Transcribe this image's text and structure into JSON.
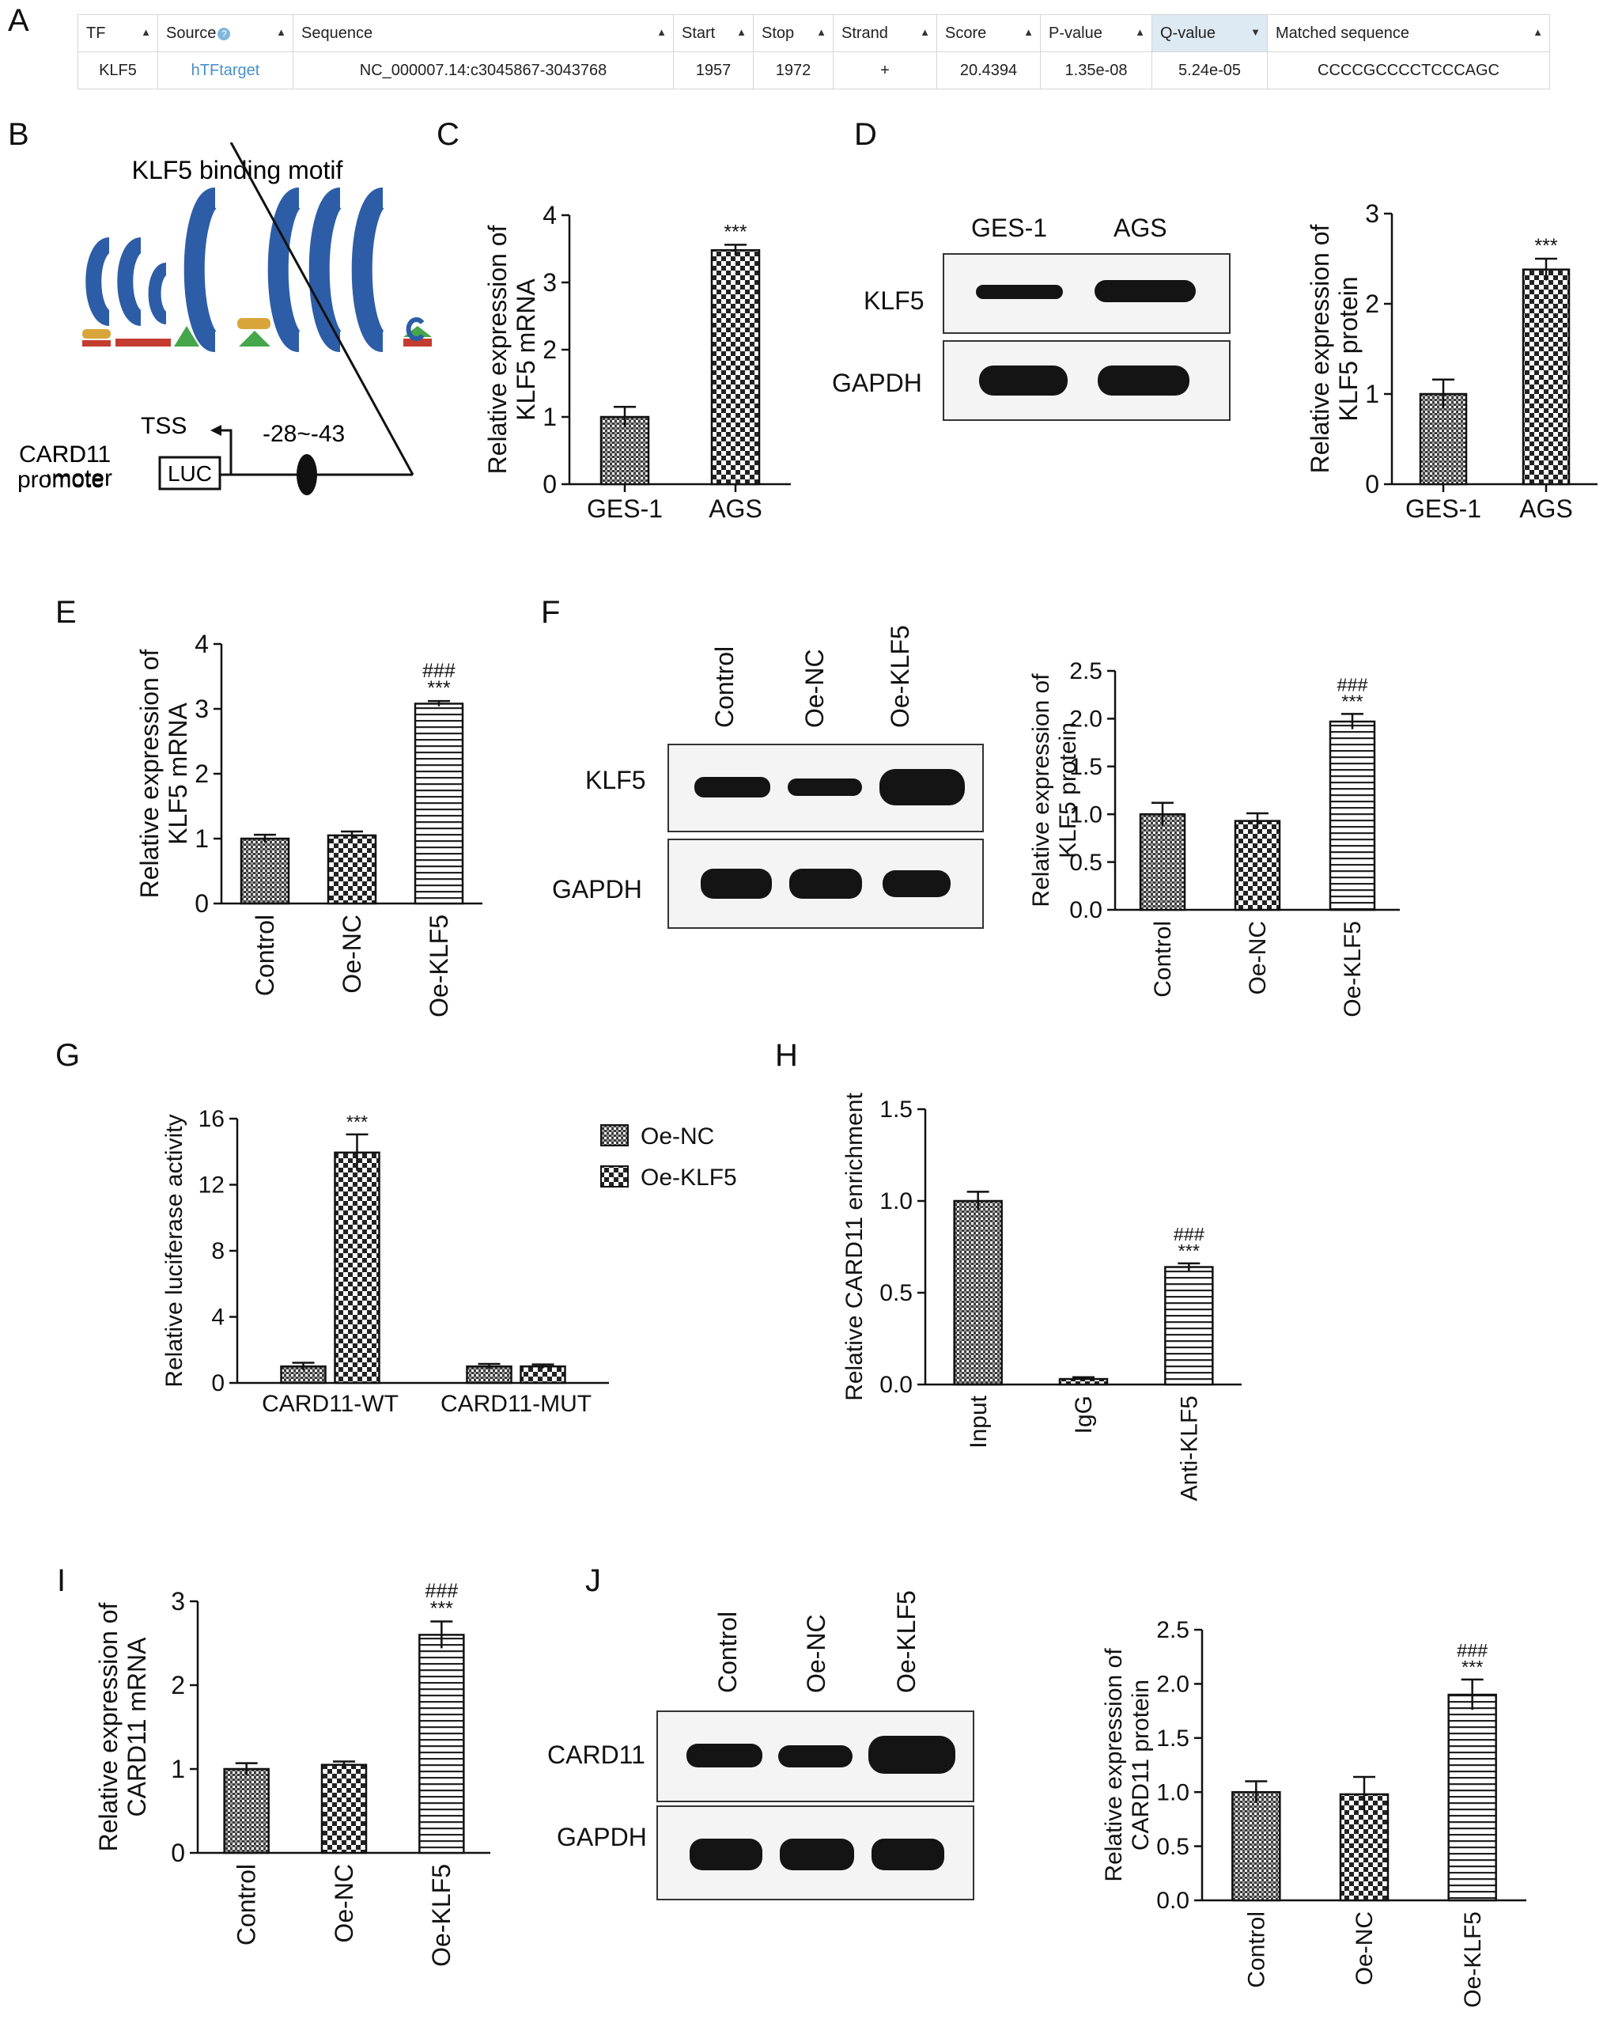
{
  "panels": {
    "A": "A",
    "B": "B",
    "C": "C",
    "D": "D",
    "E": "E",
    "F": "F",
    "G": "G",
    "H": "H",
    "I": "I",
    "J": "J"
  },
  "colors": {
    "bar_stroke": "#111111",
    "blot_bg": "#f4f4f4",
    "blot_band": "#141414",
    "link": "#4a90c8",
    "active_header": "#dde9f3"
  },
  "table": {
    "headers": [
      "TF",
      "Source",
      "Sequence",
      "Start",
      "Stop",
      "Strand",
      "Score",
      "P-value",
      "Q-value",
      "Matched sequence"
    ],
    "active_header": "Q-value",
    "row": [
      "KLF5",
      "hTFtarget",
      "NC_000007.14:c3045867-3043768",
      "1957",
      "1972",
      "+",
      "20.4394",
      "1.35e-08",
      "5.24e-05",
      "CCCCGCCCCTCCCAGC"
    ]
  },
  "motif": {
    "title": "KLF5 binding motif",
    "tss_label": "TSS",
    "site_label": "-28~-43",
    "promoter_label_1": "CARD11",
    "promoter_label_2": "promoter",
    "luc_label": "LUC"
  },
  "blots": {
    "D": {
      "lanes": [
        "GES-1",
        "AGS"
      ],
      "rows": [
        "KLF5",
        "GAPDH"
      ]
    },
    "F": {
      "lanes": [
        "Control",
        "Oe-NC",
        "Oe-KLF5"
      ],
      "rows": [
        "KLF5",
        "GAPDH"
      ]
    },
    "J": {
      "lanes": [
        "Control",
        "Oe-NC",
        "Oe-KLF5"
      ],
      "rows": [
        "CARD11",
        "GAPDH"
      ]
    }
  },
  "chart_data": [
    {
      "panel": "C",
      "type": "bar",
      "categories": [
        "GES-1",
        "AGS"
      ],
      "values": [
        1.0,
        3.48
      ],
      "errors": [
        0.15,
        0.08
      ],
      "patterns": [
        "dense",
        "check"
      ],
      "sig": [
        "",
        "***"
      ],
      "ylabel": [
        "Relative expression of",
        "KLF5 mRNA"
      ],
      "ylim": [
        0,
        4
      ],
      "yticks": [
        "0",
        "1",
        "2",
        "3",
        "4"
      ]
    },
    {
      "panel": "D",
      "type": "bar",
      "categories": [
        "GES-1",
        "AGS"
      ],
      "values": [
        1.0,
        2.38
      ],
      "errors": [
        0.16,
        0.12
      ],
      "patterns": [
        "dense",
        "check"
      ],
      "sig": [
        "",
        "***"
      ],
      "ylabel": [
        "Relative expression of",
        "KLF5 protein"
      ],
      "ylim": [
        0,
        3
      ],
      "yticks": [
        "0",
        "1",
        "2",
        "3"
      ]
    },
    {
      "panel": "E",
      "type": "bar",
      "categories": [
        "Control",
        "Oe-NC",
        "Oe-KLF5"
      ],
      "values": [
        1.0,
        1.05,
        3.08
      ],
      "errors": [
        0.06,
        0.06,
        0.04
      ],
      "patterns": [
        "dense",
        "check",
        "hline"
      ],
      "sig": [
        "",
        "",
        "***"
      ],
      "sig2": [
        "",
        "",
        "###"
      ],
      "ylabel": [
        "Relative expression of",
        "KLF5 mRNA"
      ],
      "ylim": [
        0,
        4
      ],
      "yticks": [
        "0",
        "1",
        "2",
        "3",
        "4"
      ]
    },
    {
      "panel": "F",
      "type": "bar",
      "categories": [
        "Control",
        "Oe-NC",
        "Oe-KLF5"
      ],
      "values": [
        1.0,
        0.93,
        1.97
      ],
      "errors": [
        0.12,
        0.08,
        0.08
      ],
      "patterns": [
        "dense",
        "check",
        "hline"
      ],
      "sig": [
        "",
        "",
        "***"
      ],
      "sig2": [
        "",
        "",
        "###"
      ],
      "ylabel": [
        "Relative expression of",
        "KLF5 protein"
      ],
      "ylim": [
        0,
        2.5
      ],
      "yticks": [
        "0.0",
        "0.5",
        "1.0",
        "1.5",
        "2.0",
        "2.5"
      ]
    },
    {
      "panel": "G",
      "type": "bar",
      "groups": [
        "CARD11-WT",
        "CARD11-MUT"
      ],
      "series": [
        {
          "name": "Oe-NC",
          "values": [
            1.0,
            1.0
          ],
          "errors": [
            0.22,
            0.15
          ]
        },
        {
          "name": "Oe-KLF5",
          "values": [
            13.95,
            1.0
          ],
          "errors": [
            1.1,
            0.12
          ]
        }
      ],
      "patterns": [
        "dense",
        "check"
      ],
      "sig": [
        "***",
        ""
      ],
      "ylabel": [
        "Relative luciferase activity"
      ],
      "ylim": [
        0,
        16
      ],
      "yticks": [
        "0",
        "4",
        "8",
        "12",
        "16"
      ]
    },
    {
      "panel": "H",
      "type": "bar",
      "categories": [
        "Input",
        "IgG",
        "Anti-KLF5"
      ],
      "values": [
        1.0,
        0.03,
        0.64
      ],
      "errors": [
        0.05,
        0.01,
        0.02
      ],
      "patterns": [
        "dense",
        "check",
        "hline"
      ],
      "sig": [
        "",
        "",
        "***"
      ],
      "sig2": [
        "",
        "",
        "###"
      ],
      "ylabel": [
        "Relative CARD11 enrichment"
      ],
      "ylim": [
        0,
        1.5
      ],
      "yticks": [
        "0.0",
        "0.5",
        "1.0",
        "1.5"
      ]
    },
    {
      "panel": "I",
      "type": "bar",
      "categories": [
        "Control",
        "Oe-NC",
        "Oe-KLF5"
      ],
      "values": [
        1.0,
        1.05,
        2.6
      ],
      "errors": [
        0.07,
        0.04,
        0.16
      ],
      "patterns": [
        "dense",
        "check",
        "hline"
      ],
      "sig": [
        "",
        "",
        "***"
      ],
      "sig2": [
        "",
        "",
        "###"
      ],
      "ylabel": [
        "Relative expression of",
        "CARD11 mRNA"
      ],
      "ylim": [
        0,
        3
      ],
      "yticks": [
        "0",
        "1",
        "2",
        "3"
      ]
    },
    {
      "panel": "J",
      "type": "bar",
      "categories": [
        "Control",
        "Oe-NC",
        "Oe-KLF5"
      ],
      "values": [
        1.0,
        0.98,
        1.9
      ],
      "errors": [
        0.1,
        0.16,
        0.14
      ],
      "patterns": [
        "dense",
        "check",
        "hline"
      ],
      "sig": [
        "",
        "",
        "***"
      ],
      "sig2": [
        "",
        "",
        "###"
      ],
      "ylabel": [
        "Relative expression of",
        "CARD11 protein"
      ],
      "ylim": [
        0,
        2.5
      ],
      "yticks": [
        "0.0",
        "0.5",
        "1.0",
        "1.5",
        "2.0",
        "2.5"
      ]
    }
  ]
}
